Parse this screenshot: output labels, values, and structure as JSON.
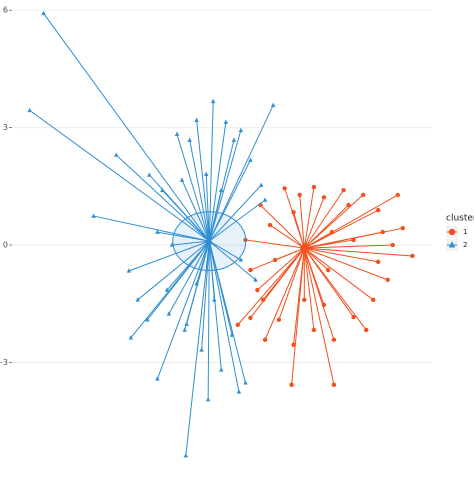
{
  "chart_data": {
    "type": "cluster",
    "ylim": [
      -5.85,
      6.26
    ],
    "yticks": [
      6,
      3,
      0,
      -3
    ],
    "xlim": [
      -5.13,
      5.79
    ],
    "grid": true,
    "legend_title": "cluster",
    "series": [
      {
        "name": "1",
        "color": "#f2501e",
        "shape": "circle",
        "centroid": [
          2.47,
          -0.08
        ],
        "x": [
          3.24,
          2.14,
          0.74,
          1.07,
          1.4,
          5.28,
          4.9,
          4.39,
          1.96,
          2.72,
          3.49,
          1.33,
          0.94,
          1.07,
          4.64,
          4.26,
          3.75,
          3.24,
          2.72,
          2.19,
          1.81,
          2.98,
          4.0,
          4.77,
          4.51,
          5.03,
          1.58,
          1.71,
          2.19,
          3.09,
          3.75,
          2.47,
          2.98,
          1.45,
          4.08,
          3.62,
          2.35,
          1.25,
          4.39,
          3.19
        ],
        "y": [
          -3.57,
          -3.57,
          -2.04,
          -1.86,
          -1.4,
          -0.28,
          1.28,
          0.89,
          1.45,
          1.48,
          1.4,
          1.02,
          0.13,
          -0.64,
          -0.89,
          -1.4,
          -1.84,
          -2.42,
          -2.17,
          -2.55,
          -1.91,
          1.22,
          1.28,
          0.0,
          0.33,
          0.43,
          0.51,
          -0.38,
          0.84,
          -0.64,
          0.13,
          -1.4,
          -1.53,
          -2.42,
          -2.17,
          1.02,
          1.28,
          -1.15,
          -0.43,
          0.33
        ]
      },
      {
        "name": "2",
        "color": "#2f8fd0",
        "shape": "triangle",
        "centroid": [
          0.0,
          0.1
        ],
        "ellipse": [
          0.95,
          0.75
        ],
        "x": [
          -4.31,
          -4.67,
          -3.01,
          -2.42,
          -2.04,
          -1.35,
          -0.61,
          0.1,
          1.66,
          0.82,
          0.94,
          0.77,
          -0.84,
          -0.51,
          -0.33,
          0.43,
          0.64,
          -1.56,
          -1.22,
          -2.09,
          -1.86,
          -1.05,
          -0.59,
          -0.2,
          0.31,
          0.59,
          -1.61,
          1.45,
          1.35,
          1.07,
          -0.97,
          -1.35,
          1.2,
          -0.33,
          0.13,
          -0.71,
          -0.08,
          0.31,
          0.82,
          -0.64,
          -0.03,
          -1.1
        ],
        "y": [
          5.92,
          3.44,
          0.74,
          2.3,
          -2.37,
          -3.42,
          -5.38,
          3.67,
          3.57,
          2.93,
          -3.52,
          -3.75,
          2.83,
          2.68,
          3.19,
          3.14,
          2.68,
          1.79,
          1.4,
          -0.66,
          -1.4,
          -1.76,
          -2.02,
          -2.68,
          -3.19,
          -2.3,
          -1.91,
          1.15,
          1.53,
          2.17,
          0.0,
          0.33,
          -0.89,
          -0.99,
          -1.4,
          1.66,
          1.81,
          1.4,
          -0.38,
          -2.17,
          -3.95,
          -1.15
        ]
      }
    ]
  }
}
